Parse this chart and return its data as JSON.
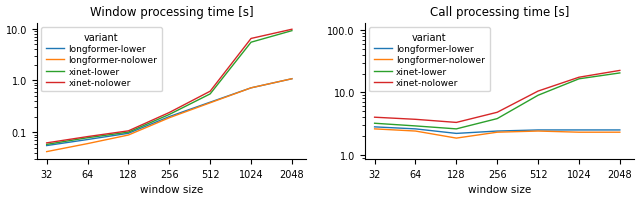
{
  "x_values": [
    32,
    64,
    128,
    256,
    512,
    1024,
    2048
  ],
  "left_title": "Window processing time [s]",
  "right_title": "Call processing time [s]",
  "xlabel": "window size",
  "variants": [
    "longformer-lower",
    "longformer-nolower",
    "xinet-lower",
    "xinet-nolower"
  ],
  "colors": [
    "#1f77b4",
    "#ff7f0e",
    "#2ca02c",
    "#d62728"
  ],
  "left_data": {
    "longformer-lower": [
      0.055,
      0.072,
      0.095,
      0.2,
      0.38,
      0.72,
      1.08
    ],
    "longformer-nolower": [
      0.042,
      0.06,
      0.088,
      0.19,
      0.37,
      0.72,
      1.08
    ],
    "xinet-lower": [
      0.058,
      0.078,
      0.1,
      0.22,
      0.55,
      5.5,
      9.2
    ],
    "xinet-nolower": [
      0.062,
      0.082,
      0.106,
      0.24,
      0.62,
      6.5,
      9.8
    ]
  },
  "right_data": {
    "longformer-lower": [
      2.8,
      2.6,
      2.2,
      2.4,
      2.5,
      2.5,
      2.5
    ],
    "longformer-nolower": [
      2.6,
      2.4,
      1.85,
      2.3,
      2.4,
      2.3,
      2.3
    ],
    "xinet-lower": [
      3.2,
      2.9,
      2.6,
      3.8,
      9.0,
      16.5,
      20.5
    ],
    "xinet-nolower": [
      4.0,
      3.7,
      3.3,
      4.8,
      10.5,
      17.5,
      22.5
    ]
  },
  "left_ylim": [
    0.03,
    13.0
  ],
  "right_ylim": [
    0.85,
    130.0
  ],
  "left_yticks": [
    0.1,
    1.0,
    10.0
  ],
  "right_yticks": [
    1.0,
    10.0,
    100.0
  ],
  "left_yticklabels": [
    "0.1",
    "1.0",
    "10.0"
  ],
  "right_yticklabels": [
    "1.0",
    "10.0",
    "100.0"
  ],
  "figsize": [
    6.4,
    2.01
  ],
  "dpi": 100
}
